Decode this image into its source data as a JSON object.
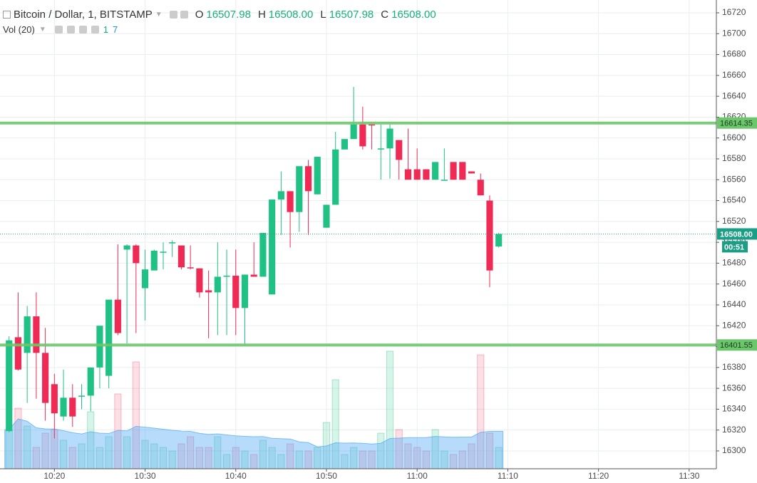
{
  "chart_data": {
    "type": "candlestick",
    "title": "Bitcoin / Dollar, 1, BITSTAMP",
    "ohlc_legend": {
      "labels": [
        "O",
        "H",
        "L",
        "C"
      ],
      "values": [
        16507.98,
        {
          "value": 16508,
          "label": "16508.00"
        },
        16507.98,
        {
          "value": 16508,
          "label": "16508.00"
        }
      ]
    },
    "volume_legend": {
      "label": "Vol (20)",
      "values": [
        1,
        7
      ]
    },
    "x": [
      "10:15",
      "10:16",
      "10:17",
      "10:18",
      "10:19",
      "10:20",
      "10:21",
      "10:22",
      "10:23",
      "10:24",
      "10:25",
      "10:26",
      "10:27",
      "10:28",
      "10:29",
      "10:30",
      "10:31",
      "10:32",
      "10:33",
      "10:34",
      "10:35",
      "10:36",
      "10:37",
      "10:38",
      "10:39",
      "10:40",
      "10:41",
      "10:42",
      "10:43",
      "10:44",
      "10:45",
      "10:46",
      "10:47",
      "10:48",
      "10:49",
      "10:50",
      "10:51",
      "10:52",
      "10:53",
      "10:54",
      "10:55",
      "10:56",
      "10:57",
      "10:58",
      "10:59",
      "11:00",
      "11:01",
      "11:02",
      "11:03",
      "11:04",
      "11:05",
      "11:06",
      "11:07",
      "11:08",
      "11:09"
    ],
    "open": [
      16319,
      16409,
      16394,
      16429,
      16394,
      16364,
      16333,
      16351,
      16352,
      16353,
      16380,
      16372,
      16445,
      16493,
      16497,
      16456,
      16473,
      16491,
      16500,
      16497,
      16476,
      16475,
      16454,
      16452,
      16467,
      16468,
      16437,
      16469,
      16467,
      16450,
      16541,
      16549,
      16529,
      16573,
      16546,
      16514,
      16536,
      16589,
      16599,
      16613,
      16613,
      16589,
      16590,
      16598,
      16570,
      16570,
      16570,
      16560,
      16560,
      16577,
      16577,
      16568,
      16560,
      16540,
      16496
    ],
    "high": [
      16410,
      16452,
      16439,
      16452,
      16418,
      16374,
      16378,
      16364,
      16364,
      16380,
      16420,
      16445,
      16498,
      16498,
      16498,
      16493,
      16493,
      16500,
      16502,
      16497,
      16497,
      16475,
      16473,
      16500,
      16493,
      16493,
      16469,
      16500,
      16509,
      16541,
      16568,
      16549,
      16573,
      16579,
      16582,
      16536,
      16606,
      16599,
      16649,
      16630,
      16613,
      16613,
      16613,
      16598,
      16609,
      16590,
      16570,
      16577,
      16590,
      16577,
      16577,
      16568,
      16566,
      16545,
      16509
    ],
    "low": [
      16318,
      16377,
      16346,
      16350,
      16329,
      16312,
      16329,
      16323,
      16340,
      16338,
      16360,
      16360,
      16411,
      16403,
      16413,
      16425,
      16473,
      16474,
      16486,
      16474,
      16474,
      16447,
      16408,
      16411,
      16411,
      16411,
      16401,
      16467,
      16467,
      16450,
      16507,
      16495,
      16510,
      16507,
      16546,
      16514,
      16536,
      16589,
      16599,
      16589,
      16589,
      16560,
      16561,
      16560,
      16560,
      16560,
      16560,
      16560,
      16560,
      16560,
      16560,
      16566,
      16545,
      16457,
      16495
    ],
    "close": [
      16406,
      16378,
      16429,
      16394,
      16346,
      16336,
      16351,
      16333,
      16353,
      16380,
      16420,
      16445,
      16413,
      16497,
      16480,
      16474,
      16492,
      16491,
      16500,
      16476,
      16475,
      16452,
      16452,
      16467,
      16468,
      16437,
      16469,
      16467,
      16509,
      16541,
      16549,
      16529,
      16573,
      16549,
      16582,
      16536,
      16589,
      16599,
      16613,
      16592,
      16612,
      16590,
      16609,
      16579,
      16560,
      16560,
      16560,
      16577,
      16560,
      16560,
      16560,
      16566,
      16545,
      16473,
      16508
    ],
    "volume": [
      55,
      85,
      60,
      30,
      50,
      55,
      40,
      30,
      35,
      80,
      30,
      45,
      105,
      45,
      150,
      40,
      35,
      30,
      25,
      35,
      45,
      30,
      30,
      45,
      20,
      30,
      25,
      20,
      40,
      30,
      20,
      35,
      25,
      25,
      30,
      65,
      125,
      20,
      30,
      25,
      25,
      50,
      165,
      55,
      35,
      30,
      25,
      55,
      25,
      20,
      25,
      35,
      160,
      50,
      30
    ],
    "up_color": "#1fc185",
    "down_color": "#ef2b55",
    "ylim": [
      16282.9,
      16732.3
    ],
    "yticks": [
      16300,
      16320,
      16340,
      16360,
      16380,
      16400,
      16420,
      16440,
      16460,
      16480,
      16500,
      16520,
      16540,
      16560,
      16580,
      16600,
      16620,
      16640,
      16660,
      16680,
      16700,
      16720
    ],
    "xlim": [
      "10:14",
      "11:33"
    ],
    "xticks": [
      "10:20",
      "10:30",
      "10:40",
      "10:50",
      "11:00",
      "11:10",
      "11:20",
      "11:30"
    ],
    "grid": true,
    "levels": [
      16614.35,
      16401.55
    ],
    "level_color": "#6cc76c",
    "last_price": {
      "value": 16508,
      "label": "16508.00"
    },
    "last_price_color": "#1a9e86",
    "countdown": "00:51"
  }
}
